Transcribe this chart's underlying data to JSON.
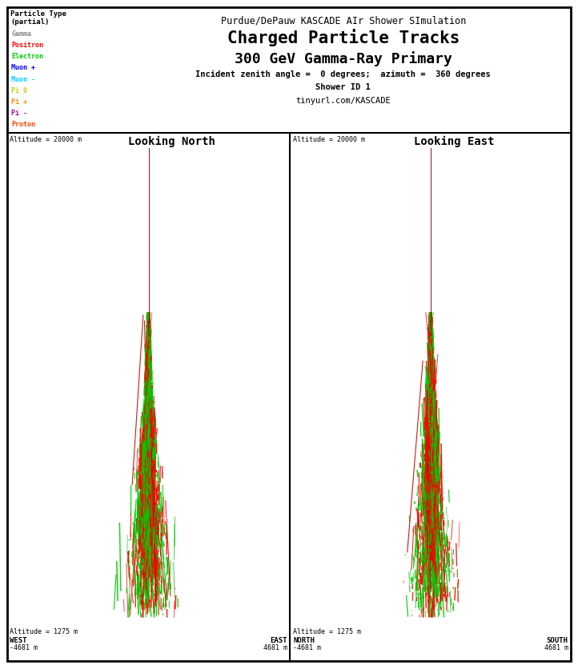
{
  "title_line1": "Purdue/DePauw KASCADE AIr Shower SImulation",
  "title_line2": "Charged Particle Tracks",
  "title_line3": "300 GeV Gamma-Ray Primary",
  "title_line4": "Incident zenith angle =  0 degrees;  azimuth =  360 degrees",
  "title_line5": "Shower ID 1",
  "title_line6": "tinyurl.com/KASCADE",
  "legend_title": "Particle Type\n(partial)",
  "legend_items": [
    "Gamma",
    "Positron",
    "Electron",
    "Muon +",
    "Muon -",
    "Pi 0",
    "Pi +",
    "Pi -",
    "Proton"
  ],
  "legend_colors": [
    "#888888",
    "#ff0000",
    "#00cc00",
    "#0000ff",
    "#00ccff",
    "#cccc00",
    "#ff8800",
    "#aa00aa",
    "#ff4400"
  ],
  "panel1_title": "Looking North",
  "panel2_title": "Looking East",
  "altitude_top": "Altitude = 20000 m",
  "altitude_bottom": "Altitude = 1275 m",
  "panel1_west": "WEST",
  "panel1_east": "EAST",
  "panel1_xmin": "-4681 m",
  "panel1_xmax": "4681 m",
  "panel2_north": "NORTH",
  "panel2_south": "SOUTH",
  "panel2_xmin": "-4681 m",
  "panel2_xmax": "4681 m",
  "bg_color": "#ffffff",
  "border_color": "#000000"
}
